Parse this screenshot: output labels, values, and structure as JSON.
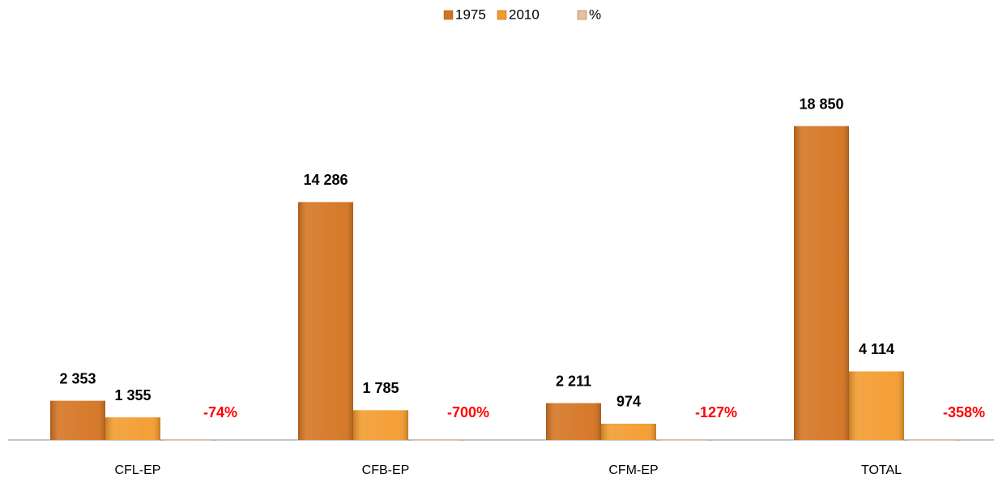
{
  "chart_data": {
    "type": "bar",
    "categories": [
      "CFL-EP",
      "CFB-EP",
      "CFM-EP",
      "TOTAL"
    ],
    "series": [
      {
        "name": "1975",
        "color": "#d4721f",
        "values": [
          2353,
          14286,
          2211,
          18850
        ],
        "value_labels": [
          "2 353",
          "14 286",
          "2 211",
          "18 850"
        ]
      },
      {
        "name": "2010",
        "color": "#f39a2c",
        "values": [
          1355,
          1785,
          974,
          4114
        ],
        "value_labels": [
          "1 355",
          "1 785",
          "974",
          "4 114"
        ]
      },
      {
        "name": "%",
        "color": "#e6bfa0",
        "values": [
          -0.74,
          -7.0,
          -1.27,
          -3.58
        ],
        "value_labels": [
          "-74%",
          "-700%",
          "-127%",
          "-358%"
        ]
      }
    ],
    "ylim": [
      0,
      20000
    ],
    "legend": "top"
  }
}
